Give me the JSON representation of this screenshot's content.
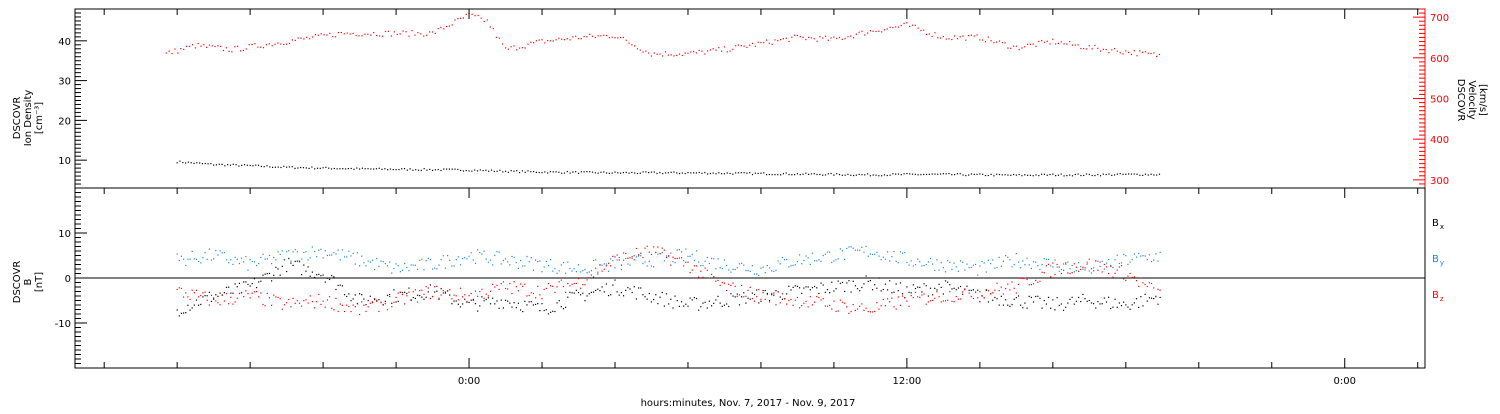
{
  "chart_data": [
    {
      "type": "scatter",
      "panel": "top",
      "ylabel_left": [
        "DSCOVR",
        "Ion Density",
        "[cm⁻³]"
      ],
      "ylabel_right": [
        "DSCOVR",
        "Velocity",
        "[km/s]"
      ],
      "ylim_left": [
        3,
        48
      ],
      "ylim_right": [
        280,
        720
      ],
      "yticks_left": [
        10,
        20,
        30,
        40
      ],
      "yticks_right": [
        300,
        400,
        500,
        600,
        700
      ],
      "series": [
        {
          "axis": "left",
          "color": "#000000",
          "points": [
            [
              -8,
              9.6
            ],
            [
              -7,
              8.9
            ],
            [
              -6,
              8.6
            ],
            [
              -5,
              8.2
            ],
            [
              -4,
              8.0
            ],
            [
              -3,
              7.8
            ],
            [
              -2,
              7.7
            ],
            [
              -1,
              7.6
            ],
            [
              0,
              7.5
            ],
            [
              1,
              7.2
            ],
            [
              2,
              7.0
            ],
            [
              3,
              6.9
            ],
            [
              4,
              6.8
            ],
            [
              5,
              6.8
            ],
            [
              6,
              6.8
            ],
            [
              7,
              6.7
            ],
            [
              8,
              6.6
            ],
            [
              9,
              6.5
            ],
            [
              10,
              6.4
            ],
            [
              11,
              6.3
            ],
            [
              12,
              6.4
            ],
            [
              13,
              6.4
            ],
            [
              14,
              6.3
            ],
            [
              15,
              6.2
            ],
            [
              16,
              6.3
            ],
            [
              17,
              6.3
            ],
            [
              18,
              6.4
            ],
            [
              19,
              6.4
            ]
          ]
        },
        {
          "axis": "right",
          "color": "#ff0000",
          "points": [
            [
              -8.3,
              610
            ],
            [
              -7.5,
              630
            ],
            [
              -6.5,
              620
            ],
            [
              -5,
              640
            ],
            [
              -3.5,
              660
            ],
            [
              -1,
              660
            ],
            [
              0,
              705
            ],
            [
              0.5,
              690
            ],
            [
              1,
              620
            ],
            [
              2,
              640
            ],
            [
              3,
              650
            ],
            [
              4,
              655
            ],
            [
              5,
              610
            ],
            [
              6,
              610
            ],
            [
              7,
              620
            ],
            [
              8,
              635
            ],
            [
              9,
              650
            ],
            [
              10,
              645
            ],
            [
              11,
              665
            ],
            [
              12,
              680
            ],
            [
              13,
              650
            ],
            [
              14,
              650
            ],
            [
              15,
              625
            ],
            [
              16,
              640
            ],
            [
              17,
              625
            ],
            [
              18,
              615
            ],
            [
              19,
              605
            ]
          ]
        }
      ]
    },
    {
      "type": "scatter",
      "panel": "bottom",
      "ylabel": [
        "DSCOVR",
        "B",
        "[nT]"
      ],
      "ylim": [
        -20,
        20
      ],
      "yticks": [
        -10,
        0,
        10
      ],
      "legend": [
        {
          "name": "B",
          "sub": "x",
          "color": "#000000"
        },
        {
          "name": "B",
          "sub": "y",
          "color": "#1a87e0"
        },
        {
          "name": "B",
          "sub": "z",
          "color": "#ff0000"
        }
      ],
      "series": [
        {
          "name": "Bx",
          "color": "#000000",
          "points": [
            [
              -8,
              -7
            ],
            [
              -7,
              -4
            ],
            [
              -6,
              -2
            ],
            [
              -5,
              3
            ],
            [
              -4,
              1
            ],
            [
              -3,
              -5
            ],
            [
              -2,
              -4
            ],
            [
              -1,
              -3
            ],
            [
              0,
              -6
            ],
            [
              1,
              -5
            ],
            [
              2,
              -7
            ],
            [
              3,
              -4
            ],
            [
              4,
              -2
            ],
            [
              5,
              -4
            ],
            [
              6,
              -6
            ],
            [
              7,
              -5
            ],
            [
              8,
              -4
            ],
            [
              9,
              -3
            ],
            [
              10,
              -2
            ],
            [
              11,
              -1
            ],
            [
              12,
              -3
            ],
            [
              13,
              -2
            ],
            [
              14,
              -4
            ],
            [
              15,
              -5
            ],
            [
              16,
              -6
            ],
            [
              17,
              -5
            ],
            [
              18,
              -6
            ],
            [
              19,
              -4
            ]
          ]
        },
        {
          "name": "By",
          "color": "#1a87e0",
          "points": [
            [
              -8,
              4
            ],
            [
              -7,
              5
            ],
            [
              -6,
              3
            ],
            [
              -5,
              5
            ],
            [
              -4,
              6
            ],
            [
              -3,
              4
            ],
            [
              -2,
              2
            ],
            [
              -1,
              3
            ],
            [
              0,
              5
            ],
            [
              1,
              4
            ],
            [
              2,
              3
            ],
            [
              3,
              2
            ],
            [
              4,
              3
            ],
            [
              5,
              4
            ],
            [
              6,
              5
            ],
            [
              7,
              3
            ],
            [
              8,
              2
            ],
            [
              9,
              4
            ],
            [
              10,
              5
            ],
            [
              11,
              6
            ],
            [
              12,
              4
            ],
            [
              13,
              3
            ],
            [
              14,
              2
            ],
            [
              15,
              4
            ],
            [
              16,
              3
            ],
            [
              17,
              2
            ],
            [
              18,
              4
            ],
            [
              19,
              5
            ]
          ]
        },
        {
          "name": "Bz",
          "color": "#ff0000",
          "points": [
            [
              -8,
              -3
            ],
            [
              -7,
              -5
            ],
            [
              -6,
              -4
            ],
            [
              -5,
              -6
            ],
            [
              -4,
              -5
            ],
            [
              -3,
              -7
            ],
            [
              -2,
              -5
            ],
            [
              -1,
              -3
            ],
            [
              0,
              -4
            ],
            [
              1,
              -2
            ],
            [
              2,
              -3
            ],
            [
              3,
              -1
            ],
            [
              4,
              4
            ],
            [
              5,
              6
            ],
            [
              6,
              3
            ],
            [
              7,
              -2
            ],
            [
              8,
              -4
            ],
            [
              9,
              -5
            ],
            [
              10,
              -6
            ],
            [
              11,
              -7
            ],
            [
              12,
              -5
            ],
            [
              13,
              -4
            ],
            [
              14,
              -3
            ],
            [
              15,
              -2
            ],
            [
              16,
              2
            ],
            [
              17,
              3
            ],
            [
              18,
              1
            ],
            [
              19,
              -4
            ]
          ]
        }
      ]
    }
  ],
  "x_axis": {
    "xlim": [
      -10.8,
      26.2
    ],
    "tick_labels": [
      {
        "x": 0,
        "label": "0:00"
      },
      {
        "x": 12,
        "label": "12:00"
      },
      {
        "x": 24,
        "label": "0:00"
      }
    ],
    "xlabel": "hours:minutes, Nov.  7, 2017 - Nov.  9, 2017"
  }
}
